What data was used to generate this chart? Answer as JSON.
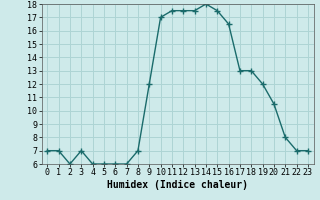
{
  "x": [
    0,
    1,
    2,
    3,
    4,
    5,
    6,
    7,
    8,
    9,
    10,
    11,
    12,
    13,
    14,
    15,
    16,
    17,
    18,
    19,
    20,
    21,
    22,
    23
  ],
  "y": [
    7,
    7,
    6,
    7,
    6,
    6,
    6,
    6,
    7,
    12,
    17,
    17.5,
    17.5,
    17.5,
    18,
    17.5,
    16.5,
    13,
    13,
    12,
    10.5,
    8,
    7,
    7
  ],
  "title": "",
  "xlabel": "Humidex (Indice chaleur)",
  "ylabel": "",
  "ylim": [
    6,
    18
  ],
  "xlim": [
    -0.5,
    23.5
  ],
  "yticks": [
    6,
    7,
    8,
    9,
    10,
    11,
    12,
    13,
    14,
    15,
    16,
    17,
    18
  ],
  "xticks": [
    0,
    1,
    2,
    3,
    4,
    5,
    6,
    7,
    8,
    9,
    10,
    11,
    12,
    13,
    14,
    15,
    16,
    17,
    18,
    19,
    20,
    21,
    22,
    23
  ],
  "line_color": "#1a6b6b",
  "marker": "+",
  "bg_color": "#ceeaea",
  "grid_color": "#add4d4",
  "title_fontsize": 7,
  "label_fontsize": 7,
  "tick_fontsize": 6,
  "marker_size": 4,
  "linewidth": 1.0
}
